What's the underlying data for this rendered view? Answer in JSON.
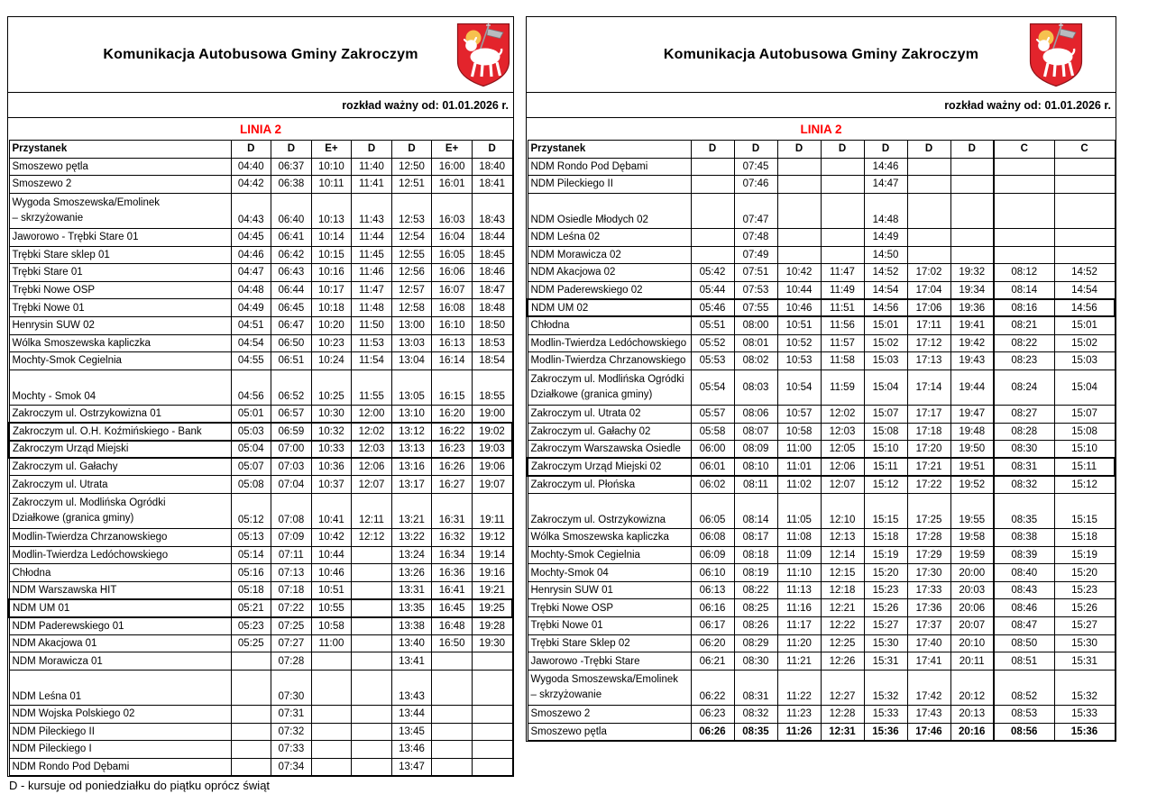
{
  "page": {
    "title": "Komunikacja Autobusowa Gminy Zakroczym",
    "valid_from": "rozkład ważny od: 01.01.2026 r.",
    "line_name": "LINIA 2",
    "stop_header": "Przystanek",
    "footnote": "D - kursuje od poniedziałku do piątku oprócz świąt",
    "crest_icon": "zakroczym-coat-of-arms-lamb",
    "colors": {
      "line_red": "#ff0000",
      "crest_red": "#e3242c",
      "crest_yellow": "#f6c14f",
      "border": "#000000"
    }
  },
  "left_table": {
    "headers": [
      "D",
      "D",
      "E+",
      "D",
      "D",
      "E+",
      "D"
    ],
    "c_split": 0,
    "rows": [
      {
        "stop": "Smoszewo pętla",
        "times": [
          "04:40",
          "06:37",
          "10:10",
          "11:40",
          "12:50",
          "16:00",
          "18:40"
        ]
      },
      {
        "stop": "Smoszewo 2",
        "times": [
          "04:42",
          "06:38",
          "10:11",
          "11:41",
          "12:51",
          "16:01",
          "18:41"
        ]
      },
      {
        "stop_lines": [
          "Wygoda Smoszewska/Emolinek",
          "– skrzyżowanie"
        ],
        "times": [
          "04:43",
          "06:40",
          "10:13",
          "11:43",
          "12:53",
          "16:03",
          "18:43"
        ]
      },
      {
        "stop": "Jaworowo - Trębki Stare 01",
        "times": [
          "04:45",
          "06:41",
          "10:14",
          "11:44",
          "12:54",
          "16:04",
          "18:44"
        ]
      },
      {
        "stop": "Trębki Stare sklep 01",
        "times": [
          "04:46",
          "06:42",
          "10:15",
          "11:45",
          "12:55",
          "16:05",
          "18:45"
        ]
      },
      {
        "stop": "Trębki Stare 01",
        "times": [
          "04:47",
          "06:43",
          "10:16",
          "11:46",
          "12:56",
          "16:06",
          "18:46"
        ]
      },
      {
        "stop": "Trębki Nowe OSP",
        "times": [
          "04:48",
          "06:44",
          "10:17",
          "11:47",
          "12:57",
          "16:07",
          "18:47"
        ]
      },
      {
        "stop": "Trębki Nowe 01",
        "times": [
          "04:49",
          "06:45",
          "10:18",
          "11:48",
          "12:58",
          "16:08",
          "18:48"
        ]
      },
      {
        "stop": "Henrysin SUW 02",
        "times": [
          "04:51",
          "06:47",
          "10:20",
          "11:50",
          "13:00",
          "16:10",
          "18:50"
        ]
      },
      {
        "stop": "Wólka Smoszewska kapliczka",
        "times": [
          "04:54",
          "06:50",
          "10:23",
          "11:53",
          "13:03",
          "16:13",
          "18:53"
        ]
      },
      {
        "stop": "Mochty-Smok Cegielnia",
        "times": [
          "04:55",
          "06:51",
          "10:24",
          "11:54",
          "13:04",
          "16:14",
          "18:54"
        ]
      },
      {
        "stop": "Mochty - Smok 04",
        "tall": true,
        "times": [
          "04:56",
          "06:52",
          "10:25",
          "11:55",
          "13:05",
          "16:15",
          "18:55"
        ]
      },
      {
        "stop": "Zakroczym ul. Ostrzykowizna 01",
        "times": [
          "05:01",
          "06:57",
          "10:30",
          "12:00",
          "13:10",
          "16:20",
          "19:00"
        ]
      },
      {
        "stop": "Zakroczym ul. O.H. Koźmińskiego - Bank",
        "box_top": true,
        "times": [
          "05:03",
          "06:59",
          "10:32",
          "12:02",
          "13:12",
          "16:22",
          "19:02"
        ]
      },
      {
        "stop": "Zakroczym Urząd Miejski",
        "box": true,
        "times": [
          "05:04",
          "07:00",
          "10:33",
          "12:03",
          "13:13",
          "16:23",
          "19:03"
        ]
      },
      {
        "stop": "Zakroczym ul. Gałachy",
        "times": [
          "05:07",
          "07:03",
          "10:36",
          "12:06",
          "13:16",
          "16:26",
          "19:06"
        ]
      },
      {
        "stop": "Zakroczym ul. Utrata",
        "times": [
          "05:08",
          "07:04",
          "10:37",
          "12:07",
          "13:17",
          "16:27",
          "19:07"
        ]
      },
      {
        "stop_lines": [
          "Zakroczym ul. Modlińska Ogródki",
          "Działkowe (granica gminy)"
        ],
        "times": [
          "05:12",
          "07:08",
          "10:41",
          "12:11",
          "13:21",
          "16:31",
          "19:11"
        ]
      },
      {
        "stop": "Modlin-Twierdza Chrzanowskiego",
        "times": [
          "05:13",
          "07:09",
          "10:42",
          "12:12",
          "13:22",
          "16:32",
          "19:12"
        ]
      },
      {
        "stop": "Modlin-Twierdza Ledóchowskiego",
        "times": [
          "05:14",
          "07:11",
          "10:44",
          "",
          "13:24",
          "16:34",
          "19:14"
        ]
      },
      {
        "stop": "Chłodna",
        "times": [
          "05:16",
          "07:13",
          "10:46",
          "",
          "13:26",
          "16:36",
          "19:16"
        ]
      },
      {
        "stop": "NDM Warszawska HIT",
        "times": [
          "05:18",
          "07:18",
          "10:51",
          "",
          "13:31",
          "16:41",
          "19:21"
        ]
      },
      {
        "stop": "NDM UM 01",
        "box": true,
        "times": [
          "05:21",
          "07:22",
          "10:55",
          "",
          "13:35",
          "16:45",
          "19:25"
        ]
      },
      {
        "stop": "NDM Paderewskiego 01",
        "times": [
          "05:23",
          "07:25",
          "10:58",
          "",
          "13:38",
          "16:48",
          "19:28"
        ]
      },
      {
        "stop": "NDM Akacjowa 01",
        "times": [
          "05:25",
          "07:27",
          "11:00",
          "",
          "13:40",
          "16:50",
          "19:30"
        ]
      },
      {
        "stop": "NDM Morawicza 01",
        "times": [
          "",
          "07:28",
          "",
          "",
          "13:41",
          "",
          ""
        ]
      },
      {
        "stop": "NDM Leśna 01",
        "tall": true,
        "times": [
          "",
          "07:30",
          "",
          "",
          "13:43",
          "",
          ""
        ]
      },
      {
        "stop": "NDM Wojska Polskiego 02",
        "times": [
          "",
          "07:31",
          "",
          "",
          "13:44",
          "",
          ""
        ]
      },
      {
        "stop": "NDM Pileckiego II",
        "times": [
          "",
          "07:32",
          "",
          "",
          "13:45",
          "",
          ""
        ]
      },
      {
        "stop": "NDM Pileckiego I",
        "times": [
          "",
          "07:33",
          "",
          "",
          "13:46",
          "",
          ""
        ]
      },
      {
        "stop": "NDM Rondo Pod Dębami",
        "times": [
          "",
          "07:34",
          "",
          "",
          "13:47",
          "",
          ""
        ]
      }
    ]
  },
  "right_table": {
    "headers": [
      "D",
      "D",
      "D",
      "D",
      "D",
      "D",
      "D",
      "C",
      "C"
    ],
    "c_split": 7,
    "rows": [
      {
        "stop": "NDM Rondo Pod Dębami",
        "times": [
          "",
          "07:45",
          "",
          "",
          "14:46",
          "",
          "",
          "",
          ""
        ]
      },
      {
        "stop": "NDM Pileckiego II",
        "times": [
          "",
          "07:46",
          "",
          "",
          "14:47",
          "",
          "",
          "",
          ""
        ]
      },
      {
        "stop": "NDM Osiedle Młodych 02",
        "tall": true,
        "times": [
          "",
          "07:47",
          "",
          "",
          "14:48",
          "",
          "",
          "",
          ""
        ]
      },
      {
        "stop": "NDM Leśna 02",
        "times": [
          "",
          "07:48",
          "",
          "",
          "14:49",
          "",
          "",
          "",
          ""
        ]
      },
      {
        "stop": "NDM Morawicza 02",
        "times": [
          "",
          "07:49",
          "",
          "",
          "14:50",
          "",
          "",
          "",
          ""
        ]
      },
      {
        "stop": "NDM Akacjowa 02",
        "times": [
          "05:42",
          "07:51",
          "10:42",
          "11:47",
          "14:52",
          "17:02",
          "19:32",
          "08:12",
          "14:52"
        ]
      },
      {
        "stop": "NDM Paderewskiego 02",
        "times": [
          "05:44",
          "07:53",
          "10:44",
          "11:49",
          "14:54",
          "17:04",
          "19:34",
          "08:14",
          "14:54"
        ]
      },
      {
        "stop": "NDM UM 02",
        "box": true,
        "times": [
          "05:46",
          "07:55",
          "10:46",
          "11:51",
          "14:56",
          "17:06",
          "19:36",
          "08:16",
          "14:56"
        ]
      },
      {
        "stop": "Chłodna",
        "times": [
          "05:51",
          "08:00",
          "10:51",
          "11:56",
          "15:01",
          "17:11",
          "19:41",
          "08:21",
          "15:01"
        ]
      },
      {
        "stop": "Modlin-Twierdza Ledóchowskiego",
        "times": [
          "05:52",
          "08:01",
          "10:52",
          "11:57",
          "15:02",
          "17:12",
          "19:42",
          "08:22",
          "15:02"
        ]
      },
      {
        "stop": "Modlin-Twierdza Chrzanowskiego",
        "times": [
          "05:53",
          "08:02",
          "10:53",
          "11:58",
          "15:03",
          "17:13",
          "19:43",
          "08:23",
          "15:03"
        ]
      },
      {
        "stop_lines": [
          "Zakroczym ul. Modlińska Ogródki",
          "Działkowe (granica gminy)"
        ],
        "center_times": true,
        "times": [
          "05:54",
          "08:03",
          "10:54",
          "11:59",
          "15:04",
          "17:14",
          "19:44",
          "08:24",
          "15:04"
        ]
      },
      {
        "stop": "Zakroczym ul. Utrata 02",
        "times": [
          "05:57",
          "08:06",
          "10:57",
          "12:02",
          "15:07",
          "17:17",
          "19:47",
          "08:27",
          "15:07"
        ]
      },
      {
        "stop": "Zakroczym ul. Gałachy 02",
        "times": [
          "05:58",
          "08:07",
          "10:58",
          "12:03",
          "15:08",
          "17:18",
          "19:48",
          "08:28",
          "15:08"
        ]
      },
      {
        "stop": "Zakroczym Warszawska Osiedle",
        "times": [
          "06:00",
          "08:09",
          "11:00",
          "12:05",
          "15:10",
          "17:20",
          "19:50",
          "08:30",
          "15:10"
        ]
      },
      {
        "stop": "Zakroczym Urząd Miejski 02",
        "box": true,
        "times": [
          "06:01",
          "08:10",
          "11:01",
          "12:06",
          "15:11",
          "17:21",
          "19:51",
          "08:31",
          "15:11"
        ]
      },
      {
        "stop": "Zakroczym ul. Płońska",
        "times": [
          "06:02",
          "08:11",
          "11:02",
          "12:07",
          "15:12",
          "17:22",
          "19:52",
          "08:32",
          "15:12"
        ]
      },
      {
        "stop": "Zakroczym ul. Ostrzykowizna",
        "tall": true,
        "times": [
          "06:05",
          "08:14",
          "11:05",
          "12:10",
          "15:15",
          "17:25",
          "19:55",
          "08:35",
          "15:15"
        ]
      },
      {
        "stop": "Wólka Smoszewska kapliczka",
        "times": [
          "06:08",
          "08:17",
          "11:08",
          "12:13",
          "15:18",
          "17:28",
          "19:58",
          "08:38",
          "15:18"
        ]
      },
      {
        "stop": "Mochty-Smok Cegielnia",
        "times": [
          "06:09",
          "08:18",
          "11:09",
          "12:14",
          "15:19",
          "17:29",
          "19:59",
          "08:39",
          "15:19"
        ]
      },
      {
        "stop": "Mochty-Smok 04",
        "times": [
          "06:10",
          "08:19",
          "11:10",
          "12:15",
          "15:20",
          "17:30",
          "20:00",
          "08:40",
          "15:20"
        ]
      },
      {
        "stop": "Henrysin SUW 01",
        "times": [
          "06:13",
          "08:22",
          "11:13",
          "12:18",
          "15:23",
          "17:33",
          "20:03",
          "08:43",
          "15:23"
        ]
      },
      {
        "stop": "Trębki Nowe OSP",
        "times": [
          "06:16",
          "08:25",
          "11:16",
          "12:21",
          "15:26",
          "17:36",
          "20:06",
          "08:46",
          "15:26"
        ]
      },
      {
        "stop": "Trębki Nowe 01",
        "times": [
          "06:17",
          "08:26",
          "11:17",
          "12:22",
          "15:27",
          "17:37",
          "20:07",
          "08:47",
          "15:27"
        ]
      },
      {
        "stop": "Trębki Stare Sklep 02",
        "times": [
          "06:20",
          "08:29",
          "11:20",
          "12:25",
          "15:30",
          "17:40",
          "20:10",
          "08:50",
          "15:30"
        ]
      },
      {
        "stop": "Jaworowo -Trębki Stare",
        "times": [
          "06:21",
          "08:30",
          "11:21",
          "12:26",
          "15:31",
          "17:41",
          "20:11",
          "08:51",
          "15:31"
        ]
      },
      {
        "stop_lines": [
          "Wygoda Smoszewska/Emolinek",
          "– skrzyżowanie"
        ],
        "times": [
          "06:22",
          "08:31",
          "11:22",
          "12:27",
          "15:32",
          "17:42",
          "20:12",
          "08:52",
          "15:32"
        ]
      },
      {
        "stop": "Smoszewo 2",
        "times": [
          "06:23",
          "08:32",
          "11:23",
          "12:28",
          "15:33",
          "17:43",
          "20:13",
          "08:53",
          "15:33"
        ]
      },
      {
        "stop": "Smoszewo pętla",
        "bold": true,
        "times": [
          "06:26",
          "08:35",
          "11:26",
          "12:31",
          "15:36",
          "17:46",
          "20:16",
          "08:56",
          "15:36"
        ]
      }
    ]
  }
}
